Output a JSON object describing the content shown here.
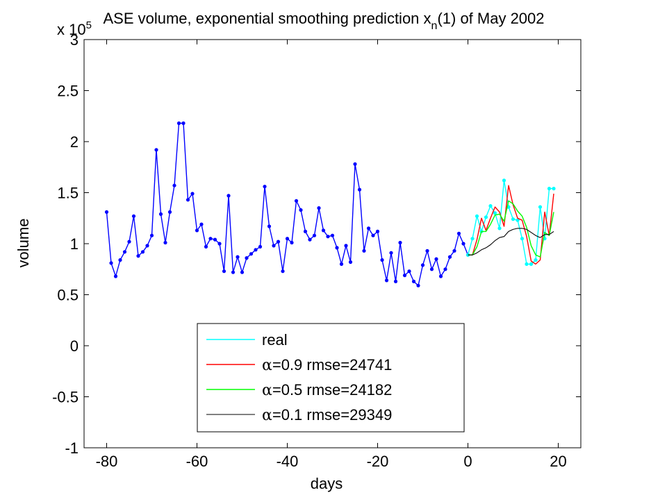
{
  "chart_data": {
    "type": "line",
    "title": "ASE volume, exponential smoothing prediction x",
    "title_subscript": "n",
    "title_suffix": "(1) of May 2002",
    "xlabel": "days",
    "ylabel": "volume",
    "y_exponent_base": "x 10",
    "y_exponent_power": "5",
    "xlim": [
      -85,
      25
    ],
    "ylim": [
      -1,
      3
    ],
    "xticks": [
      -80,
      -60,
      -40,
      -20,
      0,
      20
    ],
    "yticks": [
      -1,
      -0.5,
      0,
      0.5,
      1,
      1.5,
      2,
      2.5,
      3
    ],
    "xtick_labels": [
      "-80",
      "-60",
      "-40",
      "-20",
      "0",
      "20"
    ],
    "ytick_labels": [
      "-1",
      "-0.5",
      "0",
      "0.5",
      "1",
      "1.5",
      "2",
      "2.5",
      "3"
    ],
    "grid": false,
    "legend_position": "bottom-center",
    "colors": {
      "history": "#0000ff",
      "real": "#00ffff",
      "alpha09": "#ff0000",
      "alpha05": "#00ff00",
      "alpha01": "#000000"
    },
    "series": [
      {
        "key": "history",
        "color": "#0000ff",
        "markers": true,
        "x": [
          -80,
          -79,
          -78,
          -77,
          -76,
          -75,
          -74,
          -73,
          -72,
          -71,
          -70,
          -69,
          -68,
          -67,
          -66,
          -65,
          -64,
          -63,
          -62,
          -61,
          -60,
          -59,
          -58,
          -57,
          -56,
          -55,
          -54,
          -53,
          -52,
          -51,
          -50,
          -49,
          -48,
          -47,
          -46,
          -45,
          -44,
          -43,
          -42,
          -41,
          -40,
          -39,
          -38,
          -37,
          -36,
          -35,
          -34,
          -33,
          -32,
          -31,
          -30,
          -29,
          -28,
          -27,
          -26,
          -25,
          -24,
          -23,
          -22,
          -21,
          -20,
          -19,
          -18,
          -17,
          -16,
          -15,
          -14,
          -13,
          -12,
          -11,
          -10,
          -9,
          -8,
          -7,
          -6,
          -5,
          -4,
          -3,
          -2,
          -1,
          0
        ],
        "y": [
          1.31,
          0.81,
          0.68,
          0.84,
          0.92,
          1.02,
          1.27,
          0.88,
          0.92,
          0.98,
          1.08,
          1.92,
          1.29,
          1.01,
          1.31,
          1.57,
          2.18,
          2.18,
          1.43,
          1.49,
          1.13,
          1.19,
          0.97,
          1.05,
          1.04,
          1.0,
          0.73,
          1.47,
          0.72,
          0.87,
          0.72,
          0.86,
          0.9,
          0.94,
          0.97,
          1.56,
          1.17,
          0.98,
          1.02,
          0.73,
          1.05,
          1.01,
          1.42,
          1.33,
          1.12,
          1.04,
          1.08,
          1.35,
          1.13,
          1.07,
          1.08,
          0.96,
          0.8,
          0.98,
          0.82,
          1.78,
          1.53,
          0.93,
          1.15,
          1.08,
          1.12,
          0.84,
          0.64,
          0.91,
          0.63,
          1.01,
          0.69,
          0.73,
          0.63,
          0.59,
          0.79,
          0.93,
          0.75,
          0.85,
          0.68,
          0.75,
          0.87,
          0.93,
          1.1,
          1.0,
          0.89
        ]
      },
      {
        "key": "real",
        "name": "real",
        "color": "#00ffff",
        "markers": true,
        "x": [
          0,
          1,
          2,
          3,
          4,
          5,
          6,
          7,
          8,
          9,
          10,
          11,
          12,
          13,
          14,
          15,
          16,
          17,
          18,
          19
        ],
        "y": [
          0.89,
          1.05,
          1.27,
          1.12,
          1.26,
          1.37,
          1.3,
          1.15,
          1.62,
          1.36,
          1.24,
          1.23,
          1.05,
          0.8,
          0.8,
          0.84,
          1.36,
          1.05,
          1.54,
          1.54
        ]
      },
      {
        "key": "alpha09",
        "name": "α=0.9 rmse=24741",
        "alpha_symbol": "α",
        "label_rest": "=0.9 rmse=24741",
        "color": "#ff0000",
        "markers": false,
        "x": [
          0,
          1,
          2,
          3,
          4,
          5,
          6,
          7,
          8,
          9,
          10,
          11,
          12,
          13,
          14,
          15,
          16,
          17,
          18,
          19
        ],
        "y": [
          0.89,
          0.89,
          1.04,
          1.25,
          1.13,
          1.25,
          1.36,
          1.31,
          1.17,
          1.57,
          1.38,
          1.25,
          1.23,
          1.07,
          0.83,
          0.8,
          0.84,
          1.31,
          1.08,
          1.49
        ]
      },
      {
        "key": "alpha05",
        "name": "α=0.5 rmse=24182",
        "alpha_symbol": "α",
        "label_rest": "=0.5 rmse=24182",
        "color": "#00ff00",
        "markers": false,
        "x": [
          0,
          1,
          2,
          3,
          4,
          5,
          6,
          7,
          8,
          9,
          10,
          11,
          12,
          13,
          14,
          15,
          16,
          17,
          18,
          19
        ],
        "y": [
          0.89,
          0.89,
          0.97,
          1.12,
          1.12,
          1.19,
          1.28,
          1.29,
          1.22,
          1.42,
          1.39,
          1.32,
          1.27,
          1.16,
          0.98,
          0.89,
          0.87,
          1.11,
          1.08,
          1.31
        ]
      },
      {
        "key": "alpha01",
        "name": "α=0.1 rmse=29349",
        "alpha_symbol": "α",
        "label_rest": "=0.1 rmse=29349",
        "color": "#000000",
        "markers": false,
        "x": [
          0,
          1,
          2,
          3,
          4,
          5,
          6,
          7,
          8,
          9,
          10,
          11,
          12,
          13,
          14,
          15,
          16,
          17,
          18,
          19
        ],
        "y": [
          0.89,
          0.89,
          0.91,
          0.94,
          0.96,
          0.99,
          1.03,
          1.06,
          1.07,
          1.12,
          1.14,
          1.15,
          1.15,
          1.14,
          1.11,
          1.08,
          1.06,
          1.09,
          1.09,
          1.12
        ]
      }
    ]
  }
}
